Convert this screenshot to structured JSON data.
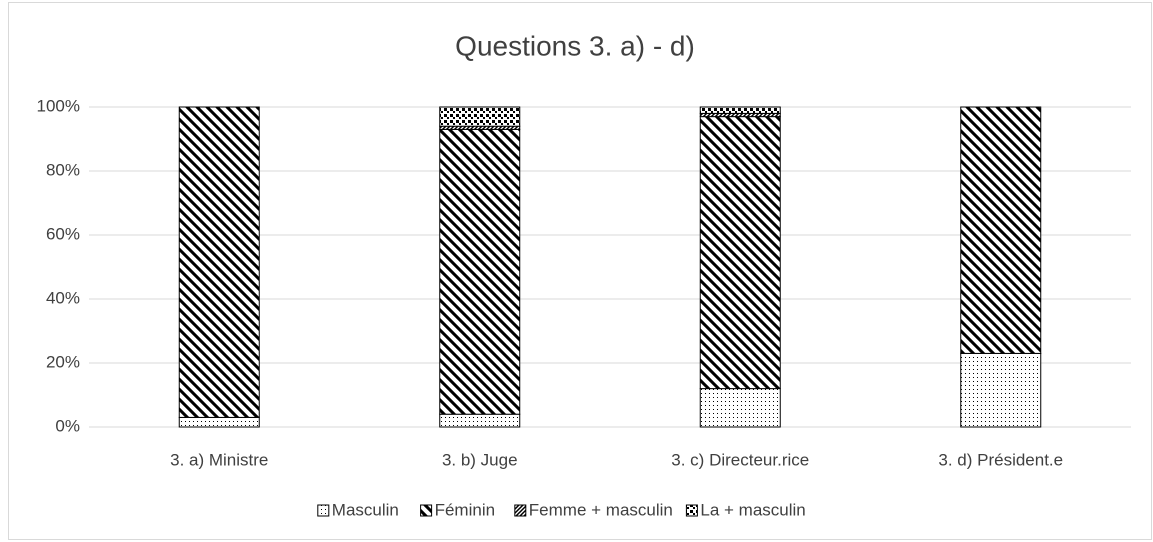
{
  "chart_data": {
    "type": "stacked_bar",
    "title": "Questions 3. a) - d)",
    "categories": [
      "3. a) Ministre",
      "3. b) Juge",
      "3. c) Directeur.rice",
      "3. d) Président.e"
    ],
    "series": [
      {
        "name": "Masculin",
        "color": "#000000",
        "pattern": "dots",
        "values": [
          3,
          4,
          12,
          23
        ]
      },
      {
        "name": "Féminin",
        "color": "#000000",
        "pattern": "diagonal",
        "values": [
          97,
          89,
          85,
          77
        ]
      },
      {
        "name": "Femme + masculin",
        "color": "#000000",
        "pattern": "dense-diagonal",
        "values": [
          0,
          1,
          1,
          0
        ]
      },
      {
        "name": "La + masculin",
        "color": "#000000",
        "pattern": "checker",
        "values": [
          0,
          6,
          2,
          0
        ]
      }
    ],
    "ylim": [
      0,
      100
    ],
    "yticks": [
      {
        "value": 0,
        "label": "0%"
      },
      {
        "value": 20,
        "label": "20%"
      },
      {
        "value": 40,
        "label": "40%"
      },
      {
        "value": 60,
        "label": "60%"
      },
      {
        "value": 80,
        "label": "80%"
      },
      {
        "value": 100,
        "label": "100%"
      }
    ],
    "grid": true,
    "legend": "bottom"
  }
}
